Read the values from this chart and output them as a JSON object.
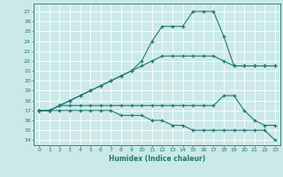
{
  "xlabel": "Humidex (Indice chaleur)",
  "bg_color": "#cce9e9",
  "line_color": "#1f7872",
  "grid_color": "#ffffff",
  "x_ticks": [
    0,
    1,
    2,
    3,
    4,
    5,
    6,
    7,
    8,
    9,
    10,
    11,
    12,
    13,
    14,
    15,
    16,
    17,
    18,
    19,
    20,
    21,
    22,
    23
  ],
  "y_ticks": [
    14,
    15,
    16,
    17,
    18,
    19,
    20,
    21,
    22,
    23,
    24,
    25,
    26,
    27
  ],
  "ylim": [
    13.5,
    27.8
  ],
  "xlim": [
    -0.5,
    23.5
  ],
  "lines": [
    {
      "x": [
        0,
        1,
        2,
        3,
        4,
        5,
        6,
        7,
        8,
        9,
        10,
        11,
        12,
        13,
        14,
        15,
        16,
        17,
        18,
        19,
        20,
        21,
        22,
        23
      ],
      "y": [
        17,
        17,
        17.5,
        18,
        18.5,
        19,
        19.5,
        20,
        20.5,
        21,
        22,
        24,
        25.5,
        25.5,
        25.5,
        27,
        27,
        27,
        24.5,
        21.5,
        21.5,
        21.5,
        21.5,
        21.5
      ]
    },
    {
      "x": [
        0,
        1,
        2,
        3,
        4,
        5,
        6,
        7,
        8,
        9,
        10,
        11,
        12,
        13,
        14,
        15,
        16,
        17,
        18,
        19,
        20,
        21,
        22,
        23
      ],
      "y": [
        17,
        17,
        17.5,
        18,
        18.5,
        19,
        19.5,
        20,
        20.5,
        21,
        21.5,
        22,
        22.5,
        22.5,
        22.5,
        22.5,
        22.5,
        22.5,
        22,
        21.5,
        21.5,
        21.5,
        21.5,
        21.5
      ]
    },
    {
      "x": [
        0,
        1,
        2,
        3,
        4,
        5,
        6,
        7,
        8,
        9,
        10,
        11,
        12,
        13,
        14,
        15,
        16,
        17,
        18,
        19,
        20,
        21,
        22,
        23
      ],
      "y": [
        17,
        17,
        17.5,
        17.5,
        17.5,
        17.5,
        17.5,
        17.5,
        17.5,
        17.5,
        17.5,
        17.5,
        17.5,
        17.5,
        17.5,
        17.5,
        17.5,
        17.5,
        18.5,
        18.5,
        17,
        16,
        15.5,
        15.5
      ]
    },
    {
      "x": [
        0,
        1,
        2,
        3,
        4,
        5,
        6,
        7,
        8,
        9,
        10,
        11,
        12,
        13,
        14,
        15,
        16,
        17,
        18,
        19,
        20,
        21,
        22,
        23
      ],
      "y": [
        17,
        17,
        17,
        17,
        17,
        17,
        17,
        17,
        16.5,
        16.5,
        16.5,
        16,
        16,
        15.5,
        15.5,
        15,
        15,
        15,
        15,
        15,
        15,
        15,
        15,
        14
      ]
    }
  ]
}
